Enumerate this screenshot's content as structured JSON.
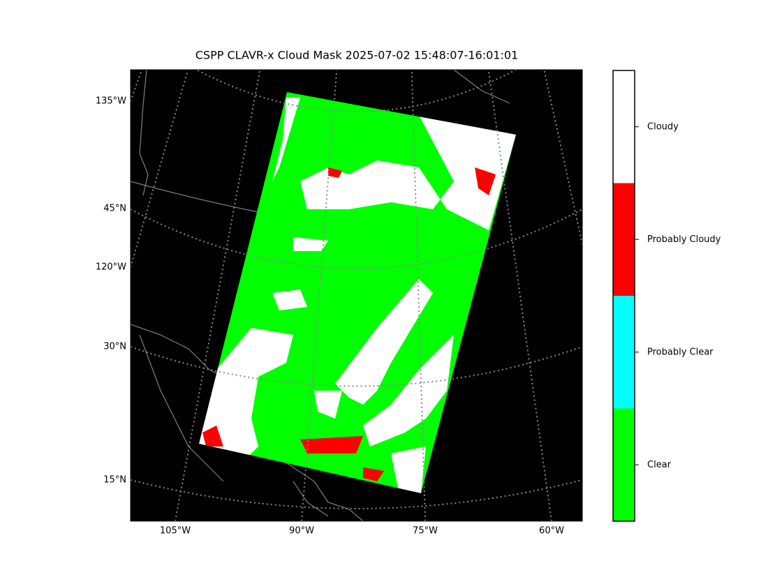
{
  "title": "CSPP CLAVR-x Cloud Mask 2025-07-02 15:48:07-16:01:01",
  "map": {
    "left_labels": [
      "135°W",
      "45°N",
      "120°W",
      "30°N",
      "15°N"
    ],
    "bottom_labels": [
      "105°W",
      "90°W",
      "75°W",
      "60°W"
    ]
  },
  "colorbar": {
    "categories": [
      {
        "label": "Clear",
        "color": "#00ff00"
      },
      {
        "label": "Probably Clear",
        "color": "#00ffff"
      },
      {
        "label": "Probably Cloudy",
        "color": "#ff0000"
      },
      {
        "label": "Cloudy",
        "color": "#ffffff"
      }
    ]
  }
}
